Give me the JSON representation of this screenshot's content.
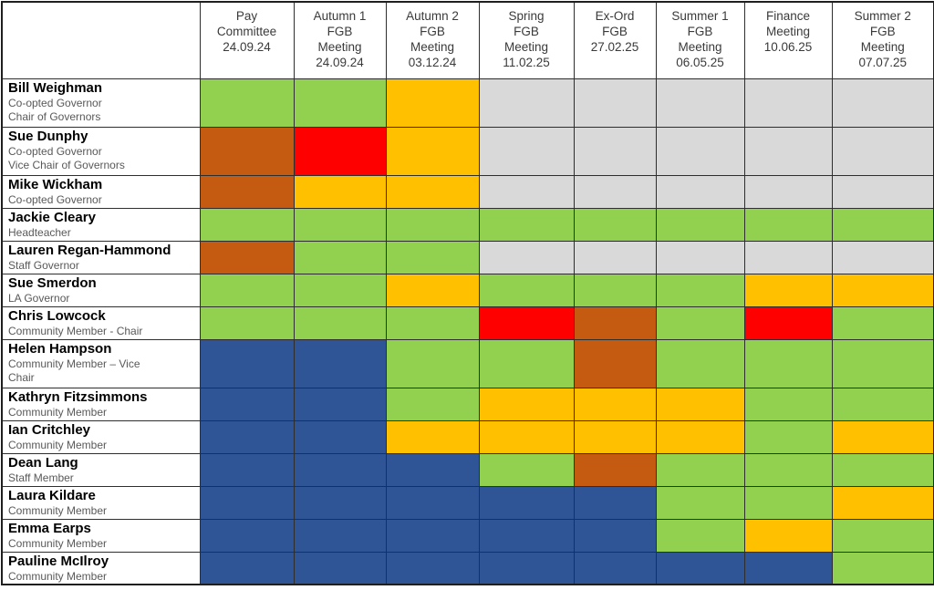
{
  "table": {
    "corner_label": "",
    "columns": [
      {
        "label": "Pay\nCommittee\n24.09.24"
      },
      {
        "label": "Autumn 1\nFGB\nMeeting\n24.09.24"
      },
      {
        "label": "Autumn 2\nFGB\nMeeting\n03.12.24"
      },
      {
        "label": "Spring\nFGB\nMeeting\n11.02.25"
      },
      {
        "label": "Ex-Ord\nFGB\n27.02.25"
      },
      {
        "label": "Summer 1\nFGB\nMeeting\n06.05.25"
      },
      {
        "label": "Finance\nMeeting\n10.06.25"
      },
      {
        "label": "Summer 2\nFGB\nMeeting\n07.07.25"
      }
    ],
    "governors": [
      {
        "name": "Bill Weighman",
        "roles": [
          "Co-opted Governor",
          "Chair of Governors"
        ],
        "attendance": [
          "green",
          "green",
          "amber",
          "grey",
          "grey",
          "grey",
          "grey",
          "grey"
        ]
      },
      {
        "name": "Sue Dunphy",
        "roles": [
          "Co-opted Governor",
          "Vice Chair of Governors"
        ],
        "attendance": [
          "brown",
          "red",
          "amber",
          "grey",
          "grey",
          "grey",
          "grey",
          "grey"
        ]
      },
      {
        "name": "Mike Wickham",
        "roles": [
          "Co-opted Governor"
        ],
        "attendance": [
          "brown",
          "amber",
          "amber",
          "grey",
          "grey",
          "grey",
          "grey",
          "grey"
        ]
      },
      {
        "name": "Jackie Cleary",
        "roles": [
          "Headteacher"
        ],
        "attendance": [
          "green",
          "green",
          "green",
          "green",
          "green",
          "green",
          "green",
          "green"
        ]
      },
      {
        "name": "Lauren Regan-Hammond",
        "roles": [
          "Staff Governor"
        ],
        "attendance": [
          "brown",
          "green",
          "green",
          "grey",
          "grey",
          "grey",
          "grey",
          "grey"
        ]
      },
      {
        "name": "Sue Smerdon",
        "roles": [
          "LA Governor"
        ],
        "attendance": [
          "green",
          "green",
          "amber",
          "green",
          "green",
          "green",
          "amber",
          "amber"
        ]
      },
      {
        "name": "Chris Lowcock",
        "roles": [
          "Community Member - Chair"
        ],
        "attendance": [
          "green",
          "green",
          "green",
          "red",
          "brown",
          "green",
          "red",
          "green"
        ]
      },
      {
        "name": "Helen Hampson",
        "roles": [
          "Community Member – Vice",
          "Chair"
        ],
        "attendance": [
          "blue",
          "blue",
          "green",
          "green",
          "brown",
          "green",
          "green",
          "green"
        ]
      },
      {
        "name": "Kathryn Fitzsimmons",
        "roles": [
          "Community Member"
        ],
        "attendance": [
          "blue",
          "blue",
          "green",
          "amber",
          "amber",
          "amber",
          "green",
          "green"
        ]
      },
      {
        "name": "Ian Critchley",
        "roles": [
          "Community Member"
        ],
        "attendance": [
          "blue",
          "blue",
          "amber",
          "amber",
          "amber",
          "amber",
          "green",
          "amber"
        ]
      },
      {
        "name": "Dean Lang",
        "roles": [
          "Staff Member"
        ],
        "attendance": [
          "blue",
          "blue",
          "blue",
          "green",
          "brown",
          "green",
          "green",
          "green"
        ]
      },
      {
        "name": "Laura Kildare",
        "roles": [
          "Community Member"
        ],
        "attendance": [
          "blue",
          "blue",
          "blue",
          "blue",
          "blue",
          "green",
          "green",
          "amber"
        ]
      },
      {
        "name": "Emma Earps",
        "roles": [
          "Community Member"
        ],
        "attendance": [
          "blue",
          "blue",
          "blue",
          "blue",
          "blue",
          "green",
          "amber",
          "green"
        ]
      },
      {
        "name": "Pauline McIlroy",
        "roles": [
          "Community Member"
        ],
        "attendance": [
          "blue",
          "blue",
          "blue",
          "blue",
          "blue",
          "blue",
          "blue",
          "green"
        ]
      }
    ]
  },
  "colors": {
    "green": "#92D050",
    "amber": "#FFC000",
    "red": "#FF0000",
    "brown": "#C55A11",
    "grey": "#D9D9D9",
    "blue": "#2F5597"
  },
  "layout_note_colors": {
    "name_text": "#000000",
    "role_text": "#595959",
    "header_text": "#3a3a3a",
    "grid_border": "#2e2e2e"
  }
}
